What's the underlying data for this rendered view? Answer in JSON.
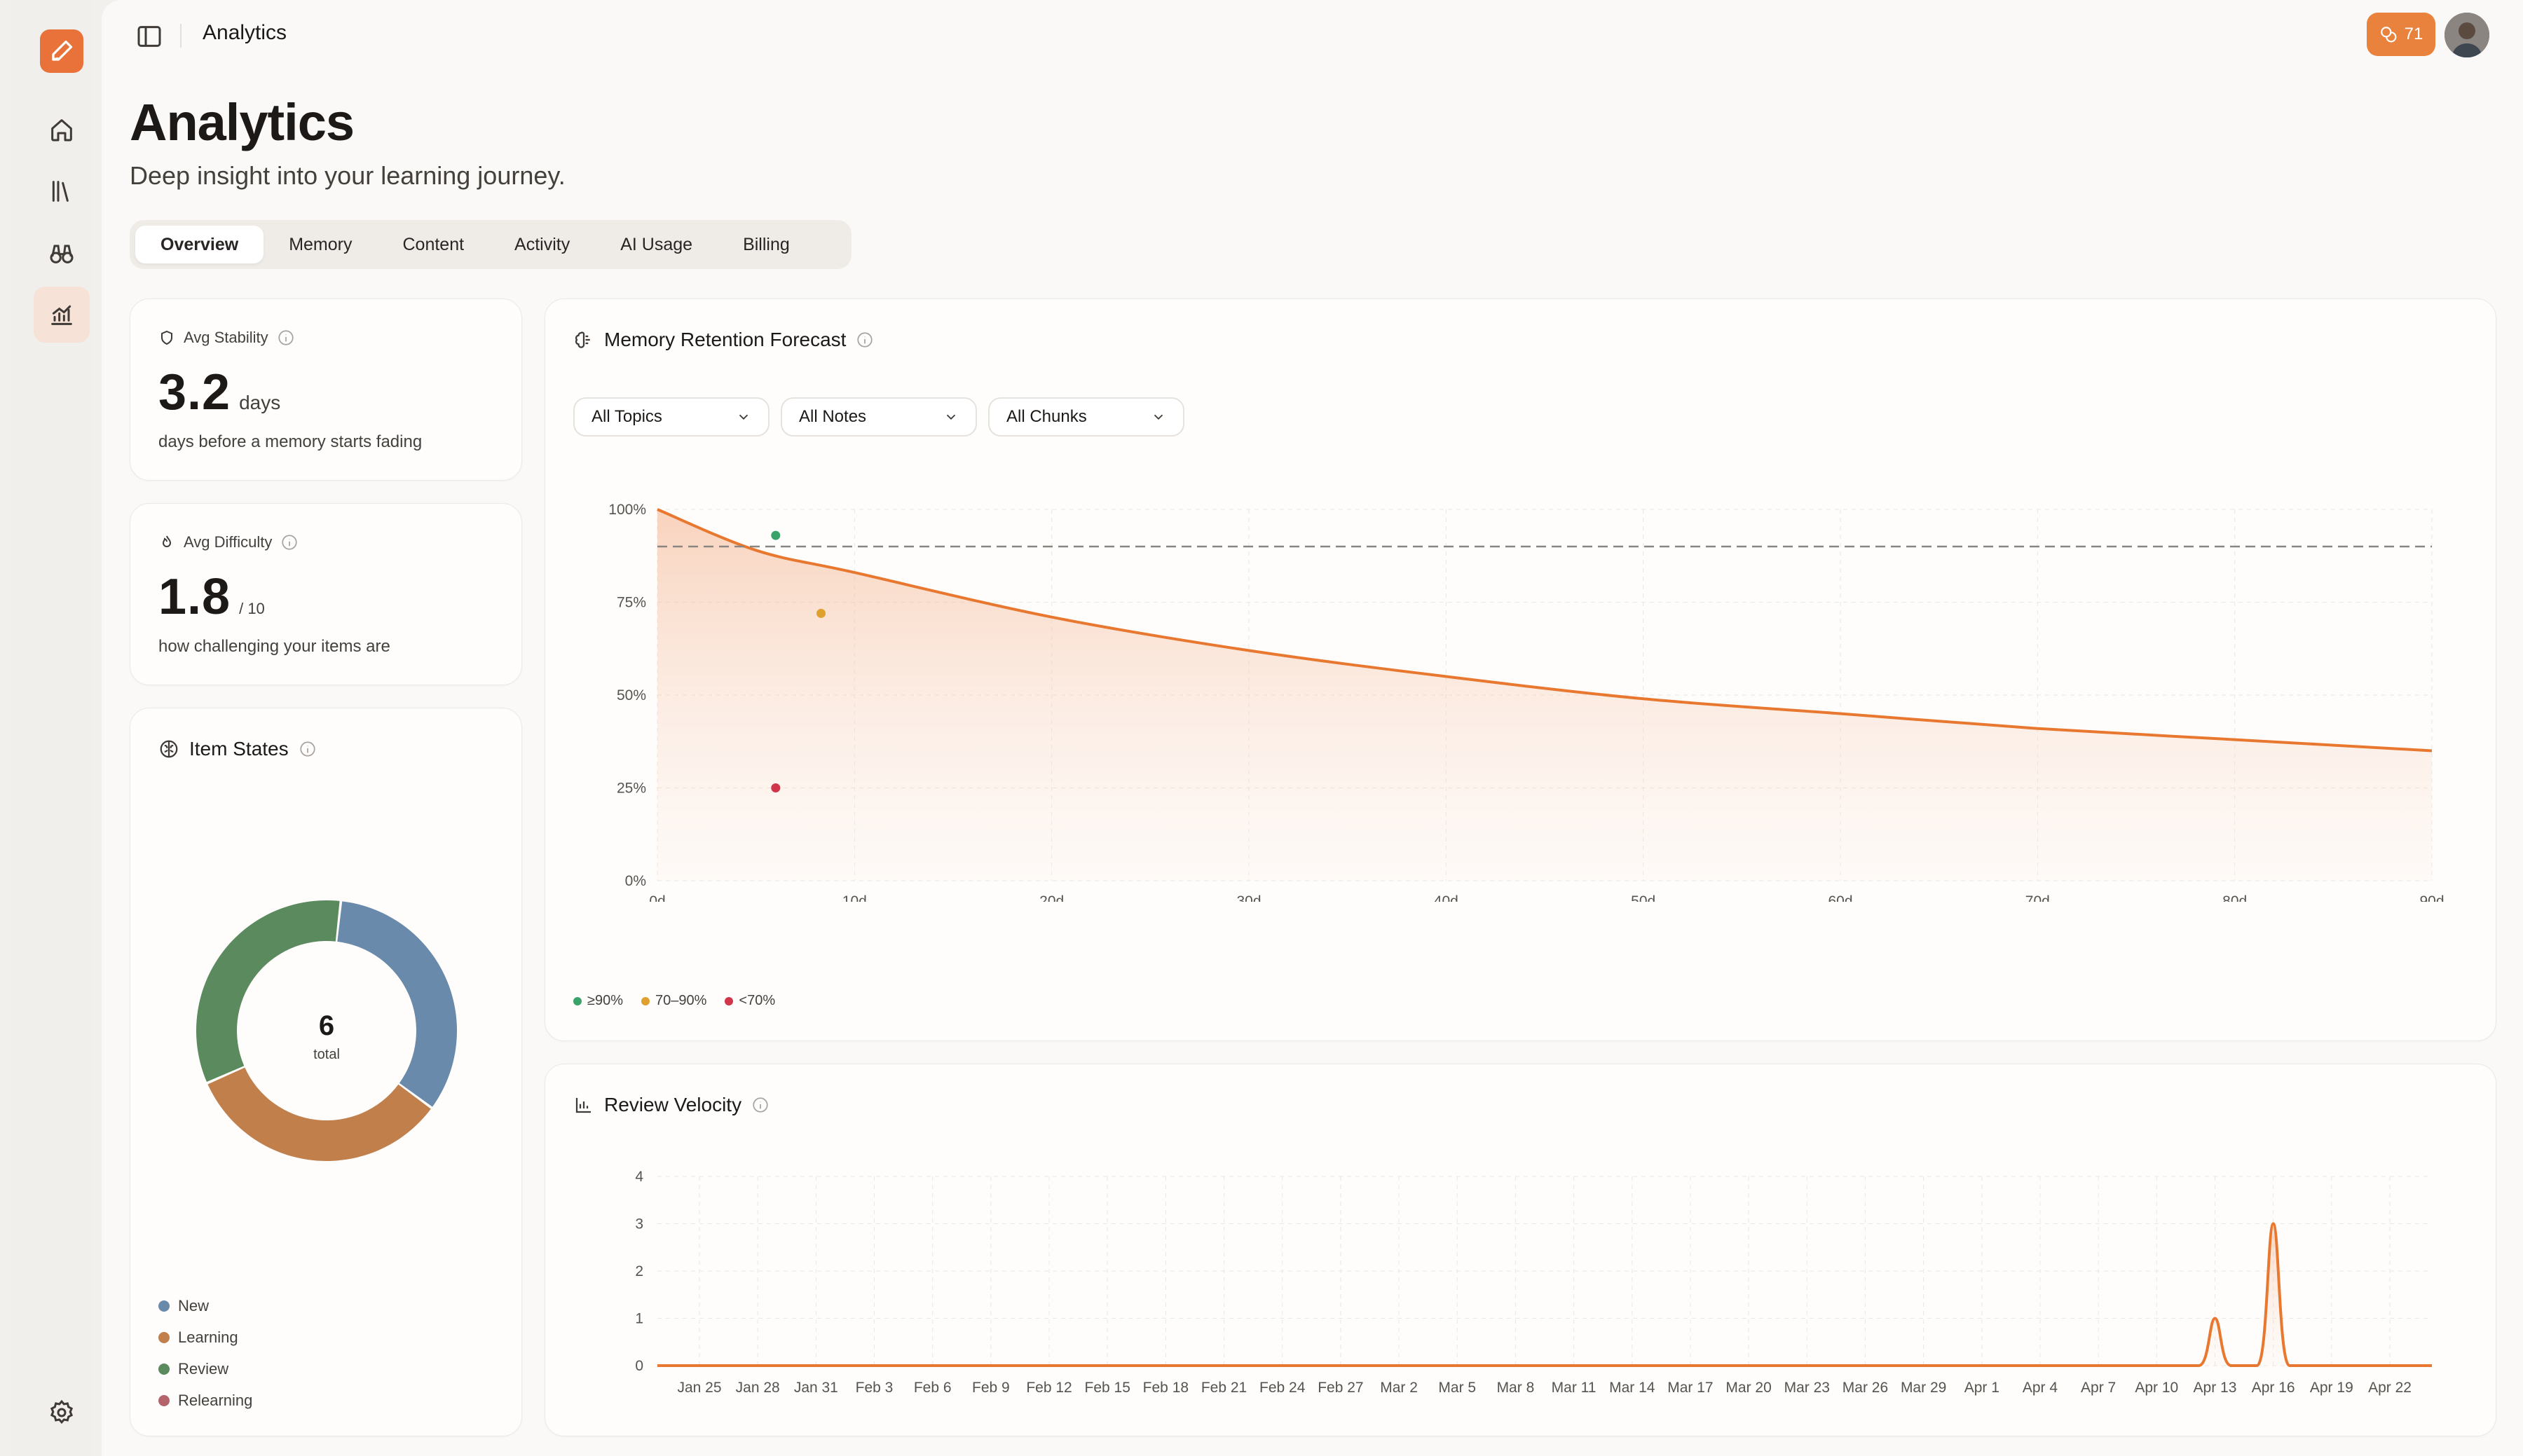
{
  "app": {
    "breadcrumb": "Analytics",
    "credits": "71",
    "colors": {
      "accent": "#e8723a",
      "new": "#6a8aab",
      "learning": "#c07f4b",
      "review": "#5a8a5e",
      "relearning": "#b4636b"
    }
  },
  "rail": {
    "items": [
      {
        "name": "home",
        "icon": "home-icon"
      },
      {
        "name": "library",
        "icon": "library-icon"
      },
      {
        "name": "explore",
        "icon": "binoculars-icon"
      },
      {
        "name": "analytics",
        "icon": "chart-icon",
        "active": true
      }
    ],
    "settings_icon": "gear-icon"
  },
  "page": {
    "title": "Analytics",
    "subtitle": "Deep insight into your learning journey."
  },
  "tabs": [
    "Overview",
    "Memory",
    "Content",
    "Activity",
    "AI Usage",
    "Billing"
  ],
  "active_tab": "Overview",
  "stats": {
    "stability": {
      "label": "Avg Stability",
      "value": "3.2",
      "unit": "days",
      "desc": "days before a memory starts fading"
    },
    "difficulty": {
      "label": "Avg Difficulty",
      "value": "1.8",
      "unit": "/ 10",
      "desc": "how challenging your items are"
    }
  },
  "item_states": {
    "title": "Item States",
    "total": "6",
    "total_label": "total",
    "legend": [
      "New",
      "Learning",
      "Review",
      "Relearning"
    ]
  },
  "retention": {
    "title": "Memory Retention Forecast",
    "filters": [
      "All Topics",
      "All Notes",
      "All Chunks"
    ],
    "legend": [
      "≥90%",
      "70–90%",
      "<70%"
    ]
  },
  "velocity": {
    "title": "Review Velocity"
  },
  "chart_data": [
    {
      "type": "pie",
      "title": "Item States",
      "categories": [
        "New",
        "Learning",
        "Review",
        "Relearning"
      ],
      "values": [
        2,
        2,
        2,
        0
      ]
    },
    {
      "type": "area",
      "title": "Memory Retention Forecast",
      "x_unit": "days",
      "x": [
        0,
        5,
        10,
        20,
        30,
        40,
        50,
        60,
        70,
        80,
        90
      ],
      "y": [
        100,
        89,
        83,
        71,
        62,
        55,
        49,
        45,
        41,
        38,
        35
      ],
      "ylim": [
        0,
        100
      ],
      "xlim": [
        0,
        90
      ],
      "x_ticks": [
        "0d",
        "10d",
        "20d",
        "30d",
        "40d",
        "50d",
        "60d",
        "70d",
        "80d",
        "90d"
      ],
      "y_ticks": [
        "0%",
        "25%",
        "50%",
        "75%",
        "100%"
      ],
      "threshold": 90,
      "points": [
        {
          "x": 6,
          "y": 93,
          "band": "≥90%"
        },
        {
          "x": 8.3,
          "y": 72,
          "band": "70–90%"
        },
        {
          "x": 6,
          "y": 25,
          "band": "<70%"
        }
      ],
      "grid": true
    },
    {
      "type": "line",
      "title": "Review Velocity",
      "categories": [
        "Jan 25",
        "Jan 28",
        "Jan 31",
        "Feb 3",
        "Feb 6",
        "Feb 9",
        "Feb 12",
        "Feb 15",
        "Feb 18",
        "Feb 21",
        "Feb 24",
        "Feb 27",
        "Mar 2",
        "Mar 5",
        "Mar 8",
        "Mar 11",
        "Mar 14",
        "Mar 17",
        "Mar 20",
        "Mar 23",
        "Mar 26",
        "Mar 29",
        "Apr 1",
        "Apr 4",
        "Apr 7",
        "Apr 10",
        "Apr 13",
        "Apr 16",
        "Apr 19",
        "Apr 22"
      ],
      "values": [
        0,
        0,
        0,
        0,
        0,
        0,
        0,
        0,
        0,
        0,
        0,
        0,
        0,
        0,
        0,
        0,
        0,
        0,
        0,
        0,
        0,
        0,
        0,
        0,
        0,
        0,
        1,
        3,
        0,
        0
      ],
      "ylim": [
        0,
        4
      ],
      "y_ticks": [
        "0",
        "1",
        "2",
        "3",
        "4"
      ],
      "grid": true
    }
  ]
}
